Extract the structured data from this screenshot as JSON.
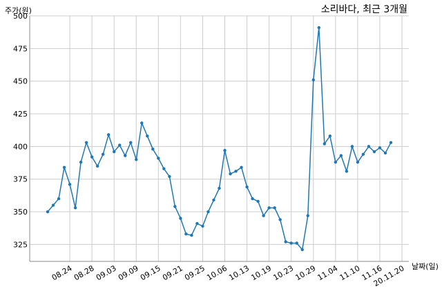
{
  "chart_data": {
    "type": "line",
    "title": "소리바다, 최근 3개월",
    "xlabel": "날짜(일)",
    "ylabel": "주가(원)",
    "ylim": [
      312,
      500
    ],
    "yticks": [
      325,
      350,
      375,
      400,
      425,
      450,
      475,
      500
    ],
    "xtick_labels": [
      "08.24",
      "08.28",
      "09.03",
      "09.09",
      "09.15",
      "09.21",
      "09.25",
      "10.06",
      "10.13",
      "10.19",
      "10.23",
      "10.29",
      "11.04",
      "11.10",
      "11.16",
      "20.11.20"
    ],
    "grid": true,
    "series": [
      {
        "color": "#1f77b4",
        "values": [
          350,
          355,
          360,
          384,
          371,
          353,
          388,
          403,
          392,
          385,
          394,
          409,
          396,
          401,
          393,
          403,
          390,
          418,
          408,
          398,
          391,
          383,
          377,
          354,
          345,
          333,
          332,
          341,
          339,
          350,
          359,
          368,
          397,
          379,
          381,
          384,
          369,
          360,
          358,
          347,
          353,
          353,
          344,
          327,
          326,
          326,
          321,
          347,
          451,
          491,
          402,
          408,
          388,
          393,
          381,
          400,
          388,
          394,
          400,
          396,
          399,
          395,
          403
        ]
      }
    ]
  }
}
